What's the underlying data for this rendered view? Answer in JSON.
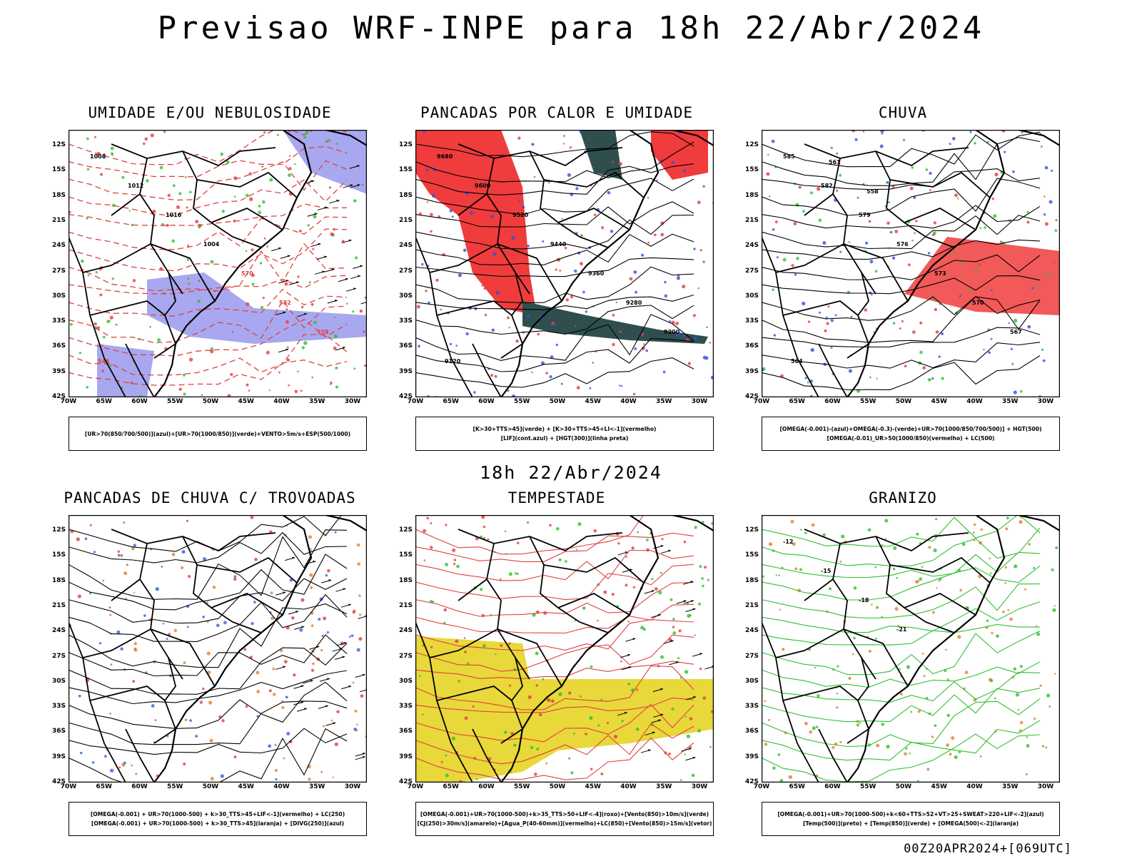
{
  "title": "Previsao WRF-INPE  para 18h 22/Abr/2024",
  "subtitle": "18h 22/Abr/2024",
  "footer": "00Z20APR2024+[069UTC]",
  "lat_ticks": [
    "12S",
    "15S",
    "18S",
    "21S",
    "24S",
    "27S",
    "30S",
    "33S",
    "36S",
    "39S",
    "42S"
  ],
  "lon_ticks": [
    "70W",
    "65W",
    "60W",
    "55W",
    "50W",
    "45W",
    "40W",
    "35W",
    "30W"
  ],
  "panels": [
    {
      "title": "UMIDADE E/OU NEBULOSIDADE",
      "legend": [
        "[UR>70(850/700/500)](azul)+[UR>70(1000/850)](verde)+VENTO>5m/s+ESP(500/1000)"
      ],
      "overlay": [
        "1008",
        "1012",
        "1016",
        "1004",
        "570",
        "582",
        "558",
        "546"
      ]
    },
    {
      "title": "PANCADAS POR CALOR E UMIDADE",
      "legend": [
        "[K>30+TTS>45](verde) + [K>30+TTS>45+LI<-1](vermelho)",
        "[LIF](cont.azul) + [HGT(300)](linha preta)"
      ],
      "overlay": [
        "9680",
        "9600",
        "9520",
        "9440",
        "9360",
        "9280",
        "9200",
        "9120"
      ]
    },
    {
      "title": "CHUVA",
      "legend": [
        "[OMEGA(-0.001)-(azul)+OMEGA(-0.3)-(verde)+UR>70(1000/850/700/500)] + HGT(500)",
        "[OMEGA(-0.01)_UR>50(1000/850)(vermelho) + LC(500)"
      ],
      "overlay": [
        "585",
        "582",
        "579",
        "576",
        "573",
        "570",
        "567",
        "564",
        "561",
        "558"
      ]
    },
    {
      "title": "PANCADAS DE CHUVA C/ TROVOADAS",
      "legend": [
        "[OMEGA(-0.001) + UR>70(1000-500) + k>30_TTS>45+LIF<-1](vermelho) + LC(250)",
        "[OMEGA(-0.001) + UR>70(1000-500) + k>30_TTS>45](laranja) + [DIVG(250)](azul)"
      ],
      "overlay": []
    },
    {
      "title": "TEMPESTADE",
      "legend": [
        "[OMEGA(-0.001)+UR>70(1000-500)+k>35_TTS>50+LIF<-4](roxo)+[Vento(850)>10m/s](verde)",
        "[CJ(250)>30m/s](amarelo)+[Agua_P(40-60mm)](vermelho)+LC(850)+[Vento(850)>15m/s](vetor)"
      ],
      "overlay": []
    },
    {
      "title": "GRANIZO",
      "legend": [
        "[OMEGA(-0.001)+UR>70(1000-500)+k<60+TTS>52+VT>25+SWEAT>220+LIF<-2](azul)",
        "[Temp(500)](preto) + [Temp(850)](verde) + [OMEGA(500)<-2](laranja)"
      ],
      "overlay": [
        "-12",
        "-15",
        "-18",
        "-21"
      ]
    }
  ]
}
